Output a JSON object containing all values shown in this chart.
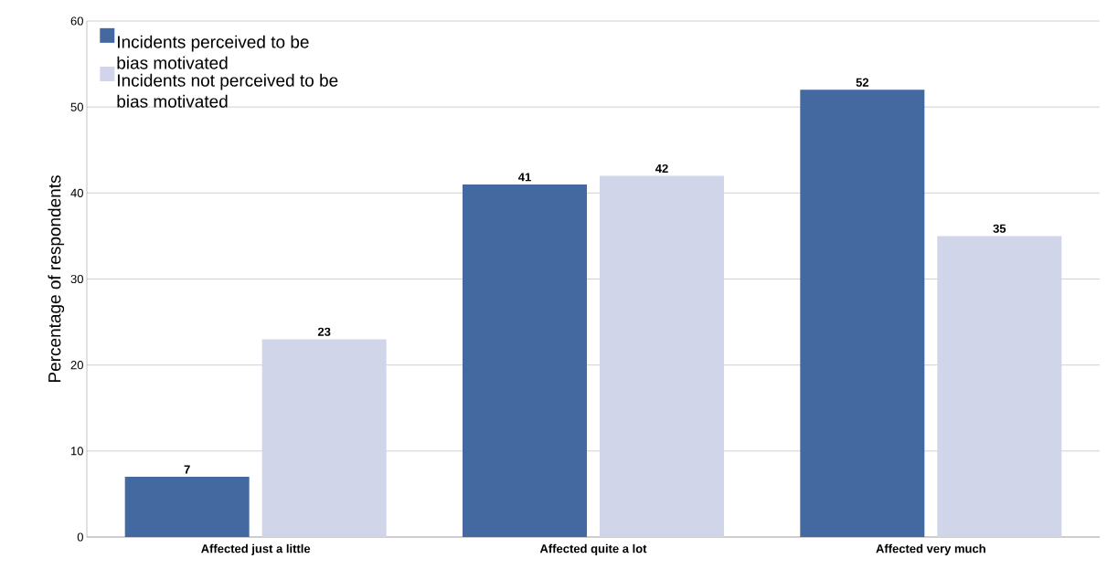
{
  "chart_data": {
    "type": "bar",
    "ylabel": "Percentage of respondents",
    "categories": [
      "Affected just a little",
      "Affected quite a lot",
      "Affected very much"
    ],
    "series": [
      {
        "name": "Incidents perceived to be bias motivated",
        "color": "#4468a0",
        "values": [
          7,
          41,
          52
        ]
      },
      {
        "name": "Incidents not perceived to be bias motivated",
        "color": "#d0d5ea",
        "values": [
          23,
          42,
          35
        ]
      }
    ],
    "ylim": [
      0,
      60
    ],
    "yticks": [
      0,
      10,
      20,
      30,
      40,
      50,
      60
    ],
    "grid": "y",
    "legend": "top left",
    "data_labels": true
  }
}
